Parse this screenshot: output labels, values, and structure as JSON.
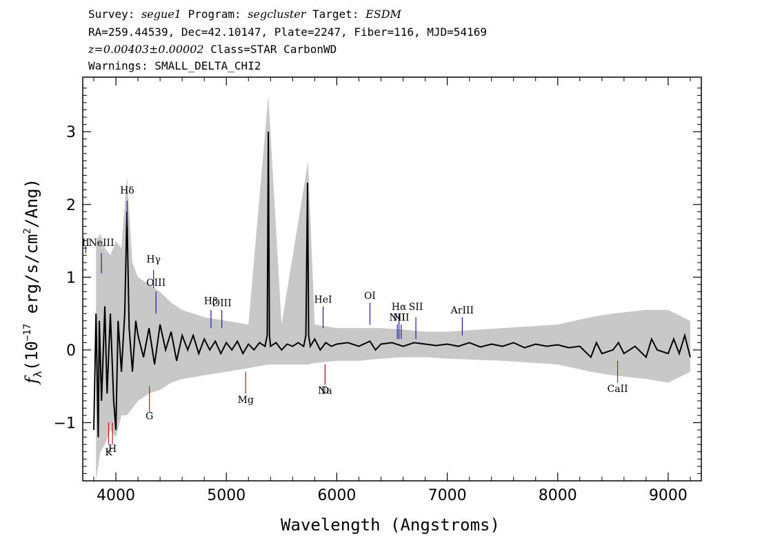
{
  "header": {
    "survey_label": "Survey:",
    "survey": "segue1",
    "program_label": "Program:",
    "program": "segcluster",
    "target_label": "Target:",
    "target": "ESDM",
    "line2": "RA=259.44539, Dec=42.10147, Plate=2247, Fiber=116, MJD=54169",
    "z": "z=0.00403±0.00002",
    "class": "Class=STAR CarbonWD",
    "warnings": "Warnings: SMALL_DELTA_CHI2"
  },
  "chart_data": {
    "type": "line",
    "xlabel": "Wavelength (Angstroms)",
    "ylabel": "f_λ (10^-17 erg/s/cm^2/Ang)",
    "ylabel_parts": {
      "f": "f",
      "sub": "λ",
      "pre": "(10",
      "exp": "−17",
      "mid": " erg/s/cm",
      "exp2": "2",
      "post": "/Ang)"
    },
    "xlim": [
      3700,
      9300
    ],
    "ylim": [
      -1.8,
      3.75
    ],
    "xticks": [
      4000,
      5000,
      6000,
      7000,
      8000,
      9000
    ],
    "yticks": [
      -1,
      0,
      1,
      2,
      3
    ],
    "series": [
      {
        "style": "error-band",
        "color": "#c8c8c8",
        "x": [
          3820,
          3860,
          3900,
          3950,
          4000,
          4050,
          4100,
          4150,
          4200,
          4300,
          4400,
          4500,
          4600,
          4800,
          5000,
          5200,
          5380,
          5500,
          5740,
          5800,
          6000,
          6200,
          6400,
          6600,
          6800,
          7000,
          7500,
          8000,
          8300,
          8500,
          8800,
          9000,
          9200
        ],
        "low": [
          -1.8,
          -1.4,
          -1.3,
          -1.1,
          -1.2,
          -0.9,
          -0.9,
          -0.8,
          -0.7,
          -0.6,
          -0.55,
          -0.45,
          -0.4,
          -0.35,
          -0.3,
          -0.25,
          -0.2,
          -0.2,
          -0.2,
          -0.18,
          -0.15,
          -0.15,
          -0.12,
          -0.1,
          -0.1,
          -0.12,
          -0.15,
          -0.2,
          -0.3,
          -0.35,
          -0.4,
          -0.45,
          -0.3
        ],
        "high": [
          1.5,
          1.6,
          1.4,
          1.3,
          1.5,
          1.4,
          2.4,
          1.2,
          1.0,
          0.9,
          0.8,
          0.65,
          0.55,
          0.45,
          0.4,
          0.35,
          3.5,
          0.35,
          2.6,
          0.35,
          0.3,
          0.3,
          0.3,
          0.28,
          0.25,
          0.25,
          0.3,
          0.35,
          0.45,
          0.5,
          0.55,
          0.55,
          0.4
        ]
      },
      {
        "style": "flux",
        "color": "#000000",
        "x": [
          3800,
          3820,
          3840,
          3850,
          3870,
          3900,
          3920,
          3950,
          3980,
          4000,
          4020,
          4050,
          4080,
          4100,
          4120,
          4150,
          4180,
          4200,
          4250,
          4300,
          4350,
          4400,
          4450,
          4500,
          4550,
          4600,
          4650,
          4700,
          4750,
          4800,
          4850,
          4900,
          4950,
          5000,
          5050,
          5100,
          5150,
          5200,
          5250,
          5300,
          5350,
          5370,
          5380,
          5390,
          5400,
          5450,
          5500,
          5550,
          5600,
          5650,
          5700,
          5720,
          5735,
          5745,
          5760,
          5800,
          5850,
          5900,
          5950,
          6000,
          6100,
          6200,
          6300,
          6350,
          6400,
          6500,
          6600,
          6700,
          6800,
          6900,
          7000,
          7100,
          7200,
          7300,
          7400,
          7500,
          7600,
          7700,
          7800,
          7900,
          8000,
          8100,
          8200,
          8300,
          8350,
          8400,
          8500,
          8550,
          8600,
          8700,
          8800,
          8850,
          8900,
          9000,
          9050,
          9100,
          9150,
          9200
        ],
        "y": [
          -1.1,
          0.5,
          -1.2,
          0.4,
          -0.7,
          0.6,
          -0.6,
          0.5,
          -0.7,
          -1.1,
          0.4,
          -0.3,
          0.5,
          1.9,
          0.3,
          -0.3,
          0.4,
          0.2,
          -0.1,
          0.3,
          -0.2,
          0.35,
          0.0,
          0.25,
          -0.15,
          0.2,
          0.0,
          0.2,
          -0.05,
          0.15,
          0.0,
          0.12,
          -0.05,
          0.1,
          0.0,
          0.12,
          -0.05,
          0.08,
          0.0,
          0.1,
          0.05,
          0.2,
          3.0,
          0.2,
          0.05,
          0.1,
          0.0,
          0.08,
          0.05,
          0.1,
          0.05,
          0.2,
          2.3,
          0.2,
          0.05,
          0.15,
          0.0,
          0.1,
          0.05,
          0.08,
          0.1,
          0.05,
          0.12,
          0.0,
          0.08,
          0.1,
          0.05,
          0.1,
          0.08,
          0.06,
          0.08,
          0.05,
          0.1,
          0.04,
          0.08,
          0.05,
          0.1,
          0.03,
          0.08,
          0.05,
          0.07,
          0.03,
          0.05,
          -0.1,
          0.1,
          -0.05,
          0.0,
          0.1,
          -0.05,
          0.05,
          -0.1,
          0.15,
          0.0,
          -0.05,
          0.15,
          -0.05,
          0.2,
          -0.1
        ]
      }
    ],
    "line_labels": [
      {
        "text": "II",
        "wave": 3727,
        "y": 1.43,
        "color": "#1a1a9a",
        "mark_y1": 1.33,
        "mark_y2": 1.43
      },
      {
        "text": "NeIII",
        "wave": 3869,
        "y": 1.43,
        "color": "#1a1a9a",
        "mark_y1": 1.05,
        "mark_y2": 1.33
      },
      {
        "text": "Hδ",
        "wave": 4102,
        "y": 2.15,
        "color": "#1a1a9a",
        "mark_y1": 1.7,
        "mark_y2": 2.05
      },
      {
        "text": "Hγ",
        "wave": 4341,
        "y": 1.2,
        "color": "#1a1a9a",
        "mark_y1": 0.85,
        "mark_y2": 1.1
      },
      {
        "text": "OIII",
        "wave": 4363,
        "y": 0.88,
        "color": "#1a1a9a",
        "mark_y1": 0.5,
        "mark_y2": 0.8
      },
      {
        "text": "Hβ",
        "wave": 4861,
        "y": 0.63,
        "color": "#1a1a9a",
        "mark_y1": 0.3,
        "mark_y2": 0.55
      },
      {
        "text": "OIII",
        "wave": 4959,
        "y": 0.6,
        "color": "#1a1a9a",
        "mark_y1": 0.3,
        "mark_y2": 0.55
      },
      {
        "text": "HeI",
        "wave": 5876,
        "y": 0.65,
        "color": "#1a1a9a",
        "mark_y1": 0.3,
        "mark_y2": 0.6
      },
      {
        "text": "OI",
        "wave": 6300,
        "y": 0.7,
        "color": "#1a1a9a",
        "mark_y1": 0.35,
        "mark_y2": 0.65
      },
      {
        "text": "NII",
        "wave": 6548,
        "y": 0.4,
        "color": "#1a1a9a",
        "mark_y1": 0.15,
        "mark_y2": 0.35
      },
      {
        "text": "Hα",
        "wave": 6563,
        "y": 0.55,
        "color": "#1a1a9a",
        "mark_y1": 0.15,
        "mark_y2": 0.5
      },
      {
        "text": "SII",
        "wave": 6716,
        "y": 0.55,
        "color": "#1a1a9a",
        "mark_y1": 0.15,
        "mark_y2": 0.45
      },
      {
        "text": "NII",
        "wave": 6583,
        "y": 0.4,
        "color": "#1a1a9a",
        "mark_y1": 0.15,
        "mark_y2": 0.35
      },
      {
        "text": "ArIII",
        "wave": 7136,
        "y": 0.5,
        "color": "#1a1a9a",
        "mark_y1": 0.2,
        "mark_y2": 0.45
      },
      {
        "text": "K",
        "wave": 3934,
        "y": -1.45,
        "color": "#aa1a1a",
        "mark_y1": -1.3,
        "mark_y2": -1.0
      },
      {
        "text": "H",
        "wave": 3969,
        "y": -1.4,
        "color": "#aa1a1a",
        "mark_y1": -1.3,
        "mark_y2": -1.0
      },
      {
        "text": "G",
        "wave": 4304,
        "y": -0.95,
        "color": "#aa1a1a",
        "mark_y1": -0.85,
        "mark_y2": -0.5
      },
      {
        "text": "Mg",
        "wave": 5175,
        "y": -0.73,
        "color": "#aa1a1a",
        "mark_y1": -0.6,
        "mark_y2": -0.3
      },
      {
        "text": "Na",
        "wave": 5894,
        "y": -0.6,
        "color": "#aa1a1a",
        "mark_y1": -0.48,
        "mark_y2": -0.2
      },
      {
        "text": "D",
        "wave": 5894,
        "y": -0.6,
        "color": "#aa1a1a",
        "mark_y1": -0.48,
        "mark_y2": -0.2
      },
      {
        "text": "CaII",
        "wave": 8542,
        "y": -0.58,
        "color": "#aa1a1a",
        "mark_y1": -0.45,
        "mark_y2": -0.15
      }
    ]
  }
}
